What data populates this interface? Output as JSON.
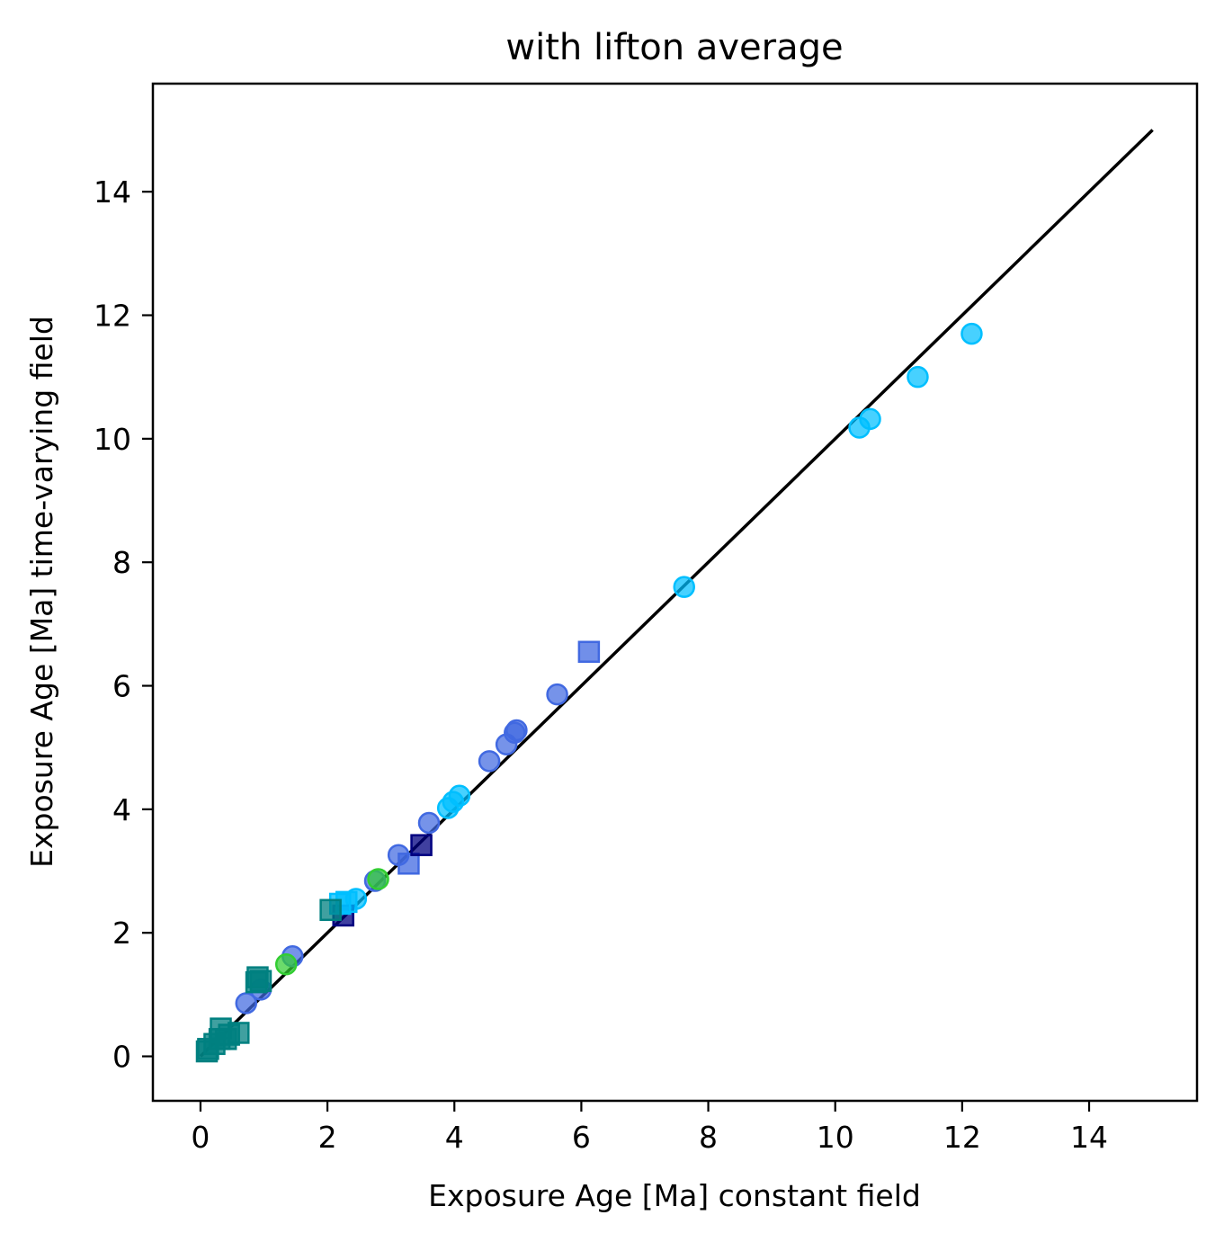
{
  "chart_data": {
    "type": "scatter",
    "title": "with lifton average",
    "xlabel": "Exposure Age [Ma] constant field",
    "ylabel": "Exposure Age [Ma] time-varying field",
    "xlim": [
      -0.75,
      15.7
    ],
    "ylim": [
      -0.72,
      15.75
    ],
    "xticks": [
      0,
      2,
      4,
      6,
      8,
      10,
      12,
      14
    ],
    "yticks": [
      0,
      2,
      4,
      6,
      8,
      10,
      12,
      14
    ],
    "grid": false,
    "legend": "none",
    "reference_line": {
      "x": [
        0,
        15
      ],
      "y": [
        0,
        15
      ],
      "color": "#000000"
    },
    "series": [
      {
        "marker": "circle",
        "color": "#00bfff",
        "points": [
          [
            12.15,
            11.7
          ],
          [
            11.3,
            11.0
          ],
          [
            10.55,
            10.32
          ],
          [
            10.38,
            10.18
          ],
          [
            7.62,
            7.6
          ],
          [
            4.08,
            4.22
          ],
          [
            3.98,
            4.12
          ],
          [
            3.9,
            4.02
          ],
          [
            2.45,
            2.55
          ]
        ]
      },
      {
        "marker": "circle",
        "color": "#4169e1",
        "points": [
          [
            5.62,
            5.86
          ],
          [
            4.98,
            5.28
          ],
          [
            4.95,
            5.24
          ],
          [
            4.82,
            5.05
          ],
          [
            4.55,
            4.78
          ],
          [
            3.6,
            3.78
          ],
          [
            3.12,
            3.26
          ],
          [
            2.75,
            2.84
          ],
          [
            1.45,
            1.62
          ],
          [
            0.95,
            1.08
          ],
          [
            0.72,
            0.86
          ]
        ]
      },
      {
        "marker": "circle",
        "color": "#32cd32",
        "points": [
          [
            2.8,
            2.87
          ],
          [
            1.35,
            1.49
          ]
        ]
      },
      {
        "marker": "square",
        "color": "#4169e1",
        "points": [
          [
            6.12,
            6.55
          ],
          [
            3.28,
            3.12
          ]
        ]
      },
      {
        "marker": "square",
        "color": "#000080",
        "points": [
          [
            3.48,
            3.42
          ],
          [
            2.25,
            2.28
          ]
        ]
      },
      {
        "marker": "square",
        "color": "#00bfff",
        "points": [
          [
            2.2,
            2.47
          ],
          [
            2.3,
            2.5
          ]
        ]
      },
      {
        "marker": "square",
        "color": "#008080",
        "points": [
          [
            2.05,
            2.37
          ],
          [
            0.9,
            1.28
          ],
          [
            0.88,
            1.2
          ],
          [
            0.95,
            1.22
          ],
          [
            0.6,
            0.38
          ],
          [
            0.45,
            0.35
          ],
          [
            0.32,
            0.45
          ],
          [
            0.3,
            0.28
          ],
          [
            0.4,
            0.28
          ],
          [
            0.22,
            0.2
          ],
          [
            0.1,
            0.08
          ],
          [
            0.12,
            0.12
          ]
        ]
      }
    ]
  }
}
